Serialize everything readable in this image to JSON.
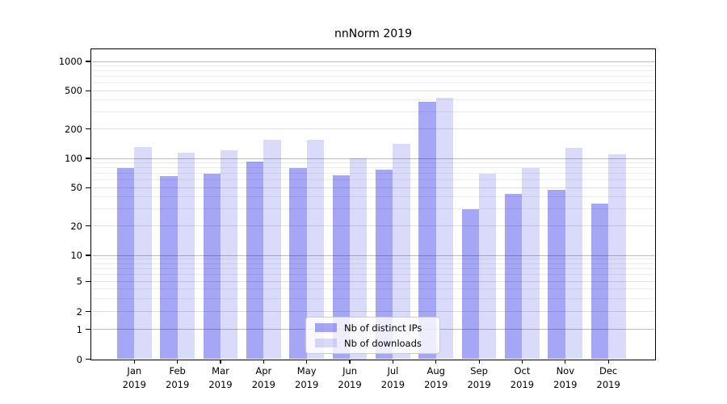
{
  "chart": {
    "title": "nnNorm 2019",
    "legend": {
      "distinct_ips_label": "Nb of distinct IPs",
      "downloads_label": "Nb of downloads"
    }
  },
  "chart_data": {
    "type": "bar",
    "title": "nnNorm 2019",
    "categories": [
      "Jan 2019",
      "Feb 2019",
      "Mar 2019",
      "Apr 2019",
      "May 2019",
      "Jun 2019",
      "Jul 2019",
      "Aug 2019",
      "Sep 2019",
      "Oct 2019",
      "Nov 2019",
      "Dec 2019"
    ],
    "series": [
      {
        "name": "Nb of distinct IPs",
        "color": "#a6a6f2",
        "values": [
          80,
          65,
          70,
          93,
          80,
          67,
          76,
          380,
          30,
          43,
          47,
          34
        ]
      },
      {
        "name": "Nb of downloads",
        "color": "#d9d9fa",
        "values": [
          130,
          115,
          120,
          155,
          155,
          100,
          140,
          420,
          70,
          80,
          128,
          110
        ]
      }
    ],
    "xlabel": "",
    "ylabel": "",
    "yscale": "symlog",
    "yticks": [
      0,
      1,
      2,
      5,
      10,
      20,
      50,
      100,
      200,
      500,
      1000
    ],
    "ylim": [
      0,
      1100
    ],
    "grid": "both-horizontal",
    "legend_position": "lower-center",
    "colors": {
      "background": "#ffffff",
      "axis": "#000000",
      "grid_major": "#c2c2c2",
      "grid_minor": "#ededed"
    }
  }
}
